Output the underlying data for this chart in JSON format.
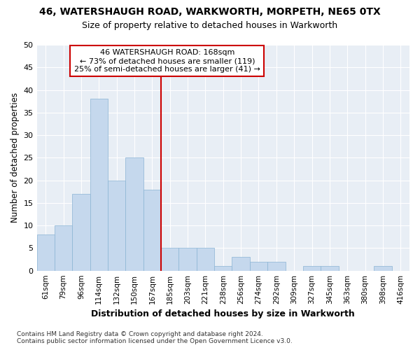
{
  "title1": "46, WATERSHAUGH ROAD, WARKWORTH, MORPETH, NE65 0TX",
  "title2": "Size of property relative to detached houses in Warkworth",
  "xlabel": "Distribution of detached houses by size in Warkworth",
  "ylabel": "Number of detached properties",
  "bar_labels": [
    "61sqm",
    "79sqm",
    "96sqm",
    "114sqm",
    "132sqm",
    "150sqm",
    "167sqm",
    "185sqm",
    "203sqm",
    "221sqm",
    "238sqm",
    "256sqm",
    "274sqm",
    "292sqm",
    "309sqm",
    "327sqm",
    "345sqm",
    "363sqm",
    "380sqm",
    "398sqm",
    "416sqm"
  ],
  "bar_values": [
    8,
    10,
    17,
    38,
    20,
    25,
    18,
    5,
    5,
    5,
    1,
    3,
    2,
    2,
    0,
    1,
    1,
    0,
    0,
    1,
    0
  ],
  "bar_color": "#c5d8ed",
  "bar_edgecolor": "#8ab4d4",
  "annotation_label": "46 WATERSHAUGH ROAD: 168sqm",
  "annotation_line1": "← 73% of detached houses are smaller (119)",
  "annotation_line2": "25% of semi-detached houses are larger (41) →",
  "annotation_box_color": "#ffffff",
  "annotation_box_edgecolor": "#cc0000",
  "vline_color": "#cc0000",
  "vline_x_index": 6,
  "ylim": [
    0,
    50
  ],
  "yticks": [
    0,
    5,
    10,
    15,
    20,
    25,
    30,
    35,
    40,
    45,
    50
  ],
  "fig_bg_color": "#ffffff",
  "plot_bg_color": "#e8eef5",
  "grid_color": "#ffffff",
  "footer_line1": "Contains HM Land Registry data © Crown copyright and database right 2024.",
  "footer_line2": "Contains public sector information licensed under the Open Government Licence v3.0."
}
